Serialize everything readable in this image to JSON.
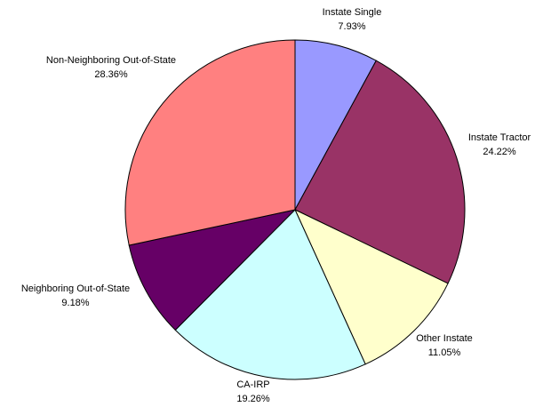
{
  "chart_data": {
    "type": "pie",
    "categories": [
      "Instate Single",
      "Instate Tractor",
      "Other Instate",
      "CA-IRP",
      "Neighboring Out-of-State",
      "Non-Neighboring Out-of-State"
    ],
    "values": [
      7.93,
      24.22,
      11.05,
      19.26,
      9.18,
      28.36
    ],
    "value_labels": [
      "7.93%",
      "24.22%",
      "11.05%",
      "19.26%",
      "9.18%",
      "28.36%"
    ],
    "colors": [
      "#9999ff",
      "#993366",
      "#ffffcc",
      "#ccffff",
      "#660066",
      "#ff8080"
    ]
  }
}
